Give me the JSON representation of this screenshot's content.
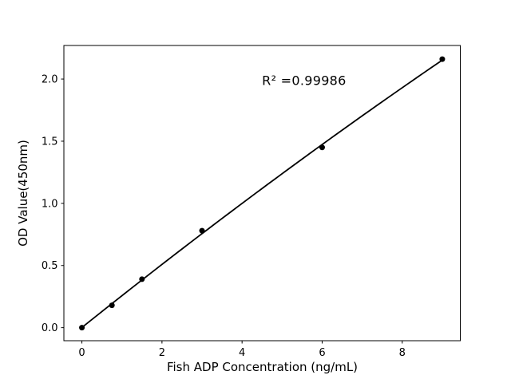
{
  "figure": {
    "background": "#ffffff",
    "ink_color": "#000000"
  },
  "chart_data": {
    "type": "scatter",
    "title": "",
    "xlabel": "Fish ADP Concentration (ng/mL)",
    "ylabel": "OD Value(450nm)",
    "x": [
      0,
      0.75,
      1.5,
      3,
      6,
      9
    ],
    "y": [
      0.0,
      0.18,
      0.39,
      0.78,
      1.45,
      2.16
    ],
    "fit": "quadratic",
    "line_color": "#000000",
    "marker_color": "#000000",
    "marker_radius": 3.5,
    "x_ticks": [
      0,
      2,
      4,
      6,
      8
    ],
    "x_tick_labels": [
      "0",
      "2",
      "4",
      "6",
      "8"
    ],
    "y_ticks": [
      0.0,
      0.5,
      1.0,
      1.5,
      2.0
    ],
    "y_tick_labels": [
      "0.0",
      "0.5",
      "1.0",
      "1.5",
      "2.0"
    ],
    "xlim": [
      -0.45,
      9.45
    ],
    "ylim": [
      -0.105,
      2.27
    ],
    "grid": false,
    "legend_position": "none",
    "annotation": {
      "text": "R² =0.99986",
      "x": 5.55,
      "y": 1.95
    }
  }
}
